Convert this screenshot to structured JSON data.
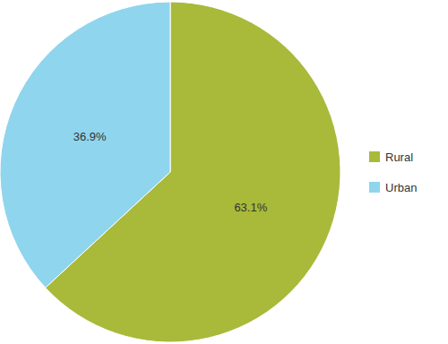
{
  "chart_data": {
    "type": "pie",
    "categories": [
      "Rural",
      "Urban"
    ],
    "values": [
      63.1,
      36.9
    ],
    "value_labels": [
      "63.1%",
      "36.9%"
    ],
    "colors": [
      "#a9b93a",
      "#8fd5ee"
    ],
    "data_labels": true,
    "legend": "right"
  }
}
